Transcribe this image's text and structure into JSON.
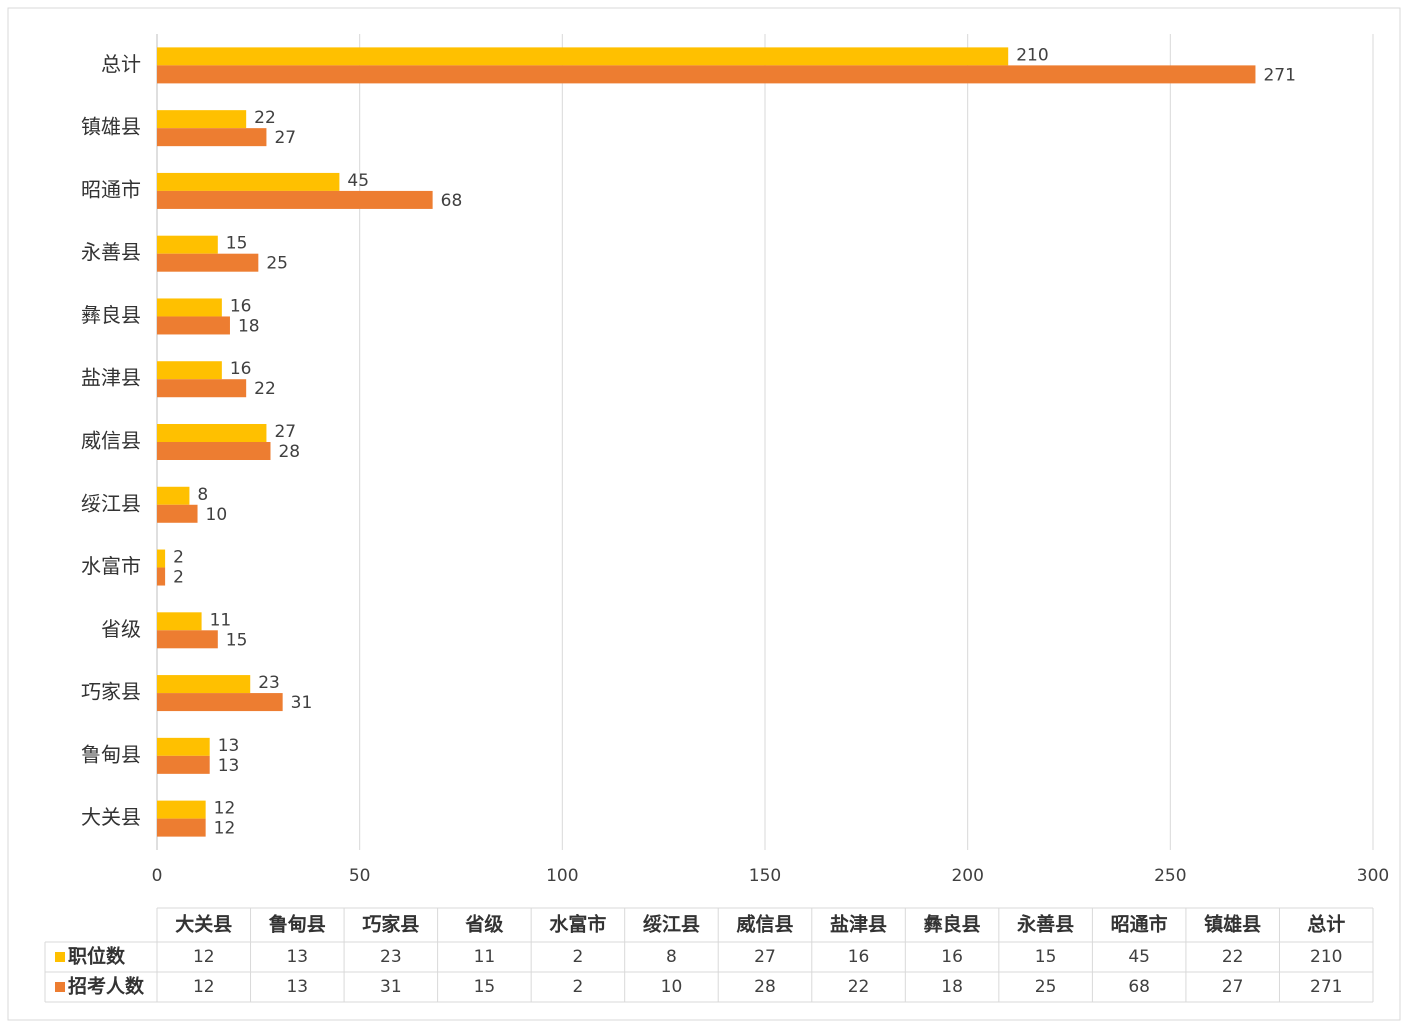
{
  "chart_data": {
    "type": "bar",
    "categories": [
      "大关县",
      "鲁甸县",
      "巧家县",
      "省级",
      "水富市",
      "绥江县",
      "威信县",
      "盐津县",
      "彝良县",
      "永善县",
      "昭通市",
      "镇雄县",
      "总计"
    ],
    "series": [
      {
        "name": "职位数",
        "color": "#FFC000",
        "values": [
          12,
          13,
          23,
          11,
          2,
          8,
          27,
          16,
          16,
          15,
          45,
          22,
          210
        ]
      },
      {
        "name": "招考人数",
        "color": "#ED7D31",
        "values": [
          12,
          13,
          31,
          15,
          2,
          10,
          28,
          22,
          18,
          25,
          68,
          27,
          271
        ]
      }
    ],
    "xlim": [
      0,
      300
    ],
    "xticks": [
      0,
      50,
      100,
      150,
      200,
      250,
      300
    ],
    "grid": true
  }
}
